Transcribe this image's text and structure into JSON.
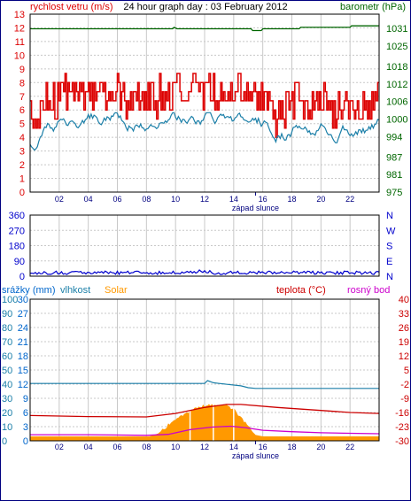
{
  "colors": {
    "wind": "#dd0000",
    "wind_avg": "#1b7fa8",
    "pressure": "#006600",
    "direction": "#0000cc",
    "rain": "#0066cc",
    "humidity": "#1b7fa8",
    "solar": "#ff9900",
    "temperature": "#cc0000",
    "dewpoint": "#cc00cc",
    "grid": "#c8c8c8",
    "frame": "#000080"
  },
  "chart_data": [
    {
      "type": "line",
      "title": "24 hour graph day : 03 February 2012",
      "left_axis_label": "rychlost vetru (m/s)",
      "right_axis_label": "barometr (hPa)",
      "left_ticks": [
        "0",
        "1",
        "2",
        "3",
        "4",
        "5",
        "6",
        "7",
        "8",
        "9",
        "10",
        "11",
        "12",
        "13"
      ],
      "right_ticks": [
        "975",
        "981",
        "987",
        "994",
        "1000",
        "1006",
        "1012",
        "1018",
        "1025",
        "1031"
      ],
      "x_ticks": [
        "02",
        "04",
        "06",
        "08",
        "10",
        "12",
        "14",
        "16",
        "18",
        "20",
        "22"
      ],
      "x_range": [
        0,
        24
      ],
      "y_left_range": [
        0,
        13
      ],
      "y_right_range": [
        975,
        1035.9
      ],
      "marker_label": "západ slunce",
      "marker_hour": 15.5,
      "series": [
        {
          "name": "rychlost vetru (m/s)",
          "style": "wind_gust",
          "base": 6.3,
          "amplitude": 1.8
        },
        {
          "name": "",
          "style": "wind_avg",
          "base": 5.0,
          "amplitude": 1.2
        },
        {
          "name": "barometr (hPa)",
          "style": "pressure",
          "x": [
            0,
            9.8,
            9.9,
            10.1,
            15.2,
            15.3,
            15.9,
            16.0,
            18.5,
            18.6,
            22.0,
            22.1,
            24
          ],
          "y": [
            1030.9,
            1030.9,
            1031.4,
            1030.9,
            1030.9,
            1030.3,
            1030.3,
            1030.9,
            1030.9,
            1031.4,
            1031.4,
            1031.9,
            1031.9
          ]
        }
      ]
    },
    {
      "type": "line",
      "left_ticks": [
        "360",
        "270",
        "180",
        "90",
        "0"
      ],
      "right_ticks": [
        "N",
        "W",
        "S",
        "E",
        "N"
      ],
      "x_range": [
        0,
        24
      ],
      "y_range": [
        0,
        360
      ],
      "series": [
        {
          "name": "",
          "style": "direction",
          "base": 20,
          "amplitude": 10
        }
      ]
    },
    {
      "type": "area",
      "legend": [
        "srážky (mm)",
        "vlhkost",
        "Solar",
        "teplota (°C)",
        "rosný bod"
      ],
      "rain_ticks": [
        "0",
        "3",
        "6",
        "9",
        "12",
        "15",
        "18",
        "21",
        "24",
        "27",
        "30"
      ],
      "humidity_ticks": [
        "0",
        "10",
        "20",
        "30",
        "40",
        "50",
        "60",
        "70",
        "80",
        "90",
        "100"
      ],
      "temp_ticks": [
        "-30",
        "-23",
        "-16",
        "-9",
        "-2",
        "5",
        "12",
        "19",
        "26",
        "33",
        "40"
      ],
      "x_ticks": [
        "02",
        "04",
        "06",
        "08",
        "10",
        "12",
        "14",
        "16",
        "18",
        "20",
        "22"
      ],
      "x_range": [
        0,
        24
      ],
      "temp_range": [
        -30,
        40
      ],
      "marker_label": "západ slunce",
      "marker_hour": 15.5,
      "series": [
        {
          "name": "vlhkost",
          "style": "humidity",
          "x": [
            0,
            12.0,
            12.2,
            12.6,
            13.0,
            14.5,
            15.0,
            15.5,
            24
          ],
          "y": [
            40.5,
            40.5,
            42.5,
            41.0,
            40.5,
            38.8,
            37.5,
            37.0,
            37.0
          ]
        },
        {
          "name": "Solar",
          "style": "solar",
          "x": [
            0,
            8.2,
            8.8,
            9.5,
            10.5,
            11.5,
            12.5,
            13.5,
            14.0,
            14.5,
            15.0,
            15.5,
            16.0,
            24
          ],
          "y": [
            3,
            3,
            5,
            11,
            18,
            23,
            26,
            25,
            22,
            16,
            10,
            4,
            3,
            3
          ]
        },
        {
          "name": "teplota (°C)",
          "style": "temperature",
          "x": [
            0,
            4,
            8,
            10,
            12,
            13.5,
            14.5,
            17,
            20,
            22,
            24
          ],
          "y": [
            -17.5,
            -18.0,
            -18.2,
            -16.5,
            -13.5,
            -12.0,
            -12.0,
            -13.5,
            -15.0,
            -16.0,
            -16.5
          ]
        },
        {
          "name": "rosný bod",
          "style": "dewpoint",
          "x": [
            0,
            4,
            8,
            9.5,
            11,
            12.5,
            13.8,
            14.8,
            16,
            18,
            20,
            22,
            24
          ],
          "y": [
            -27.0,
            -27.0,
            -27.3,
            -26.8,
            -24.5,
            -23.2,
            -22.8,
            -23.5,
            -24.8,
            -25.5,
            -26.0,
            -26.3,
            -26.5
          ]
        }
      ]
    }
  ]
}
